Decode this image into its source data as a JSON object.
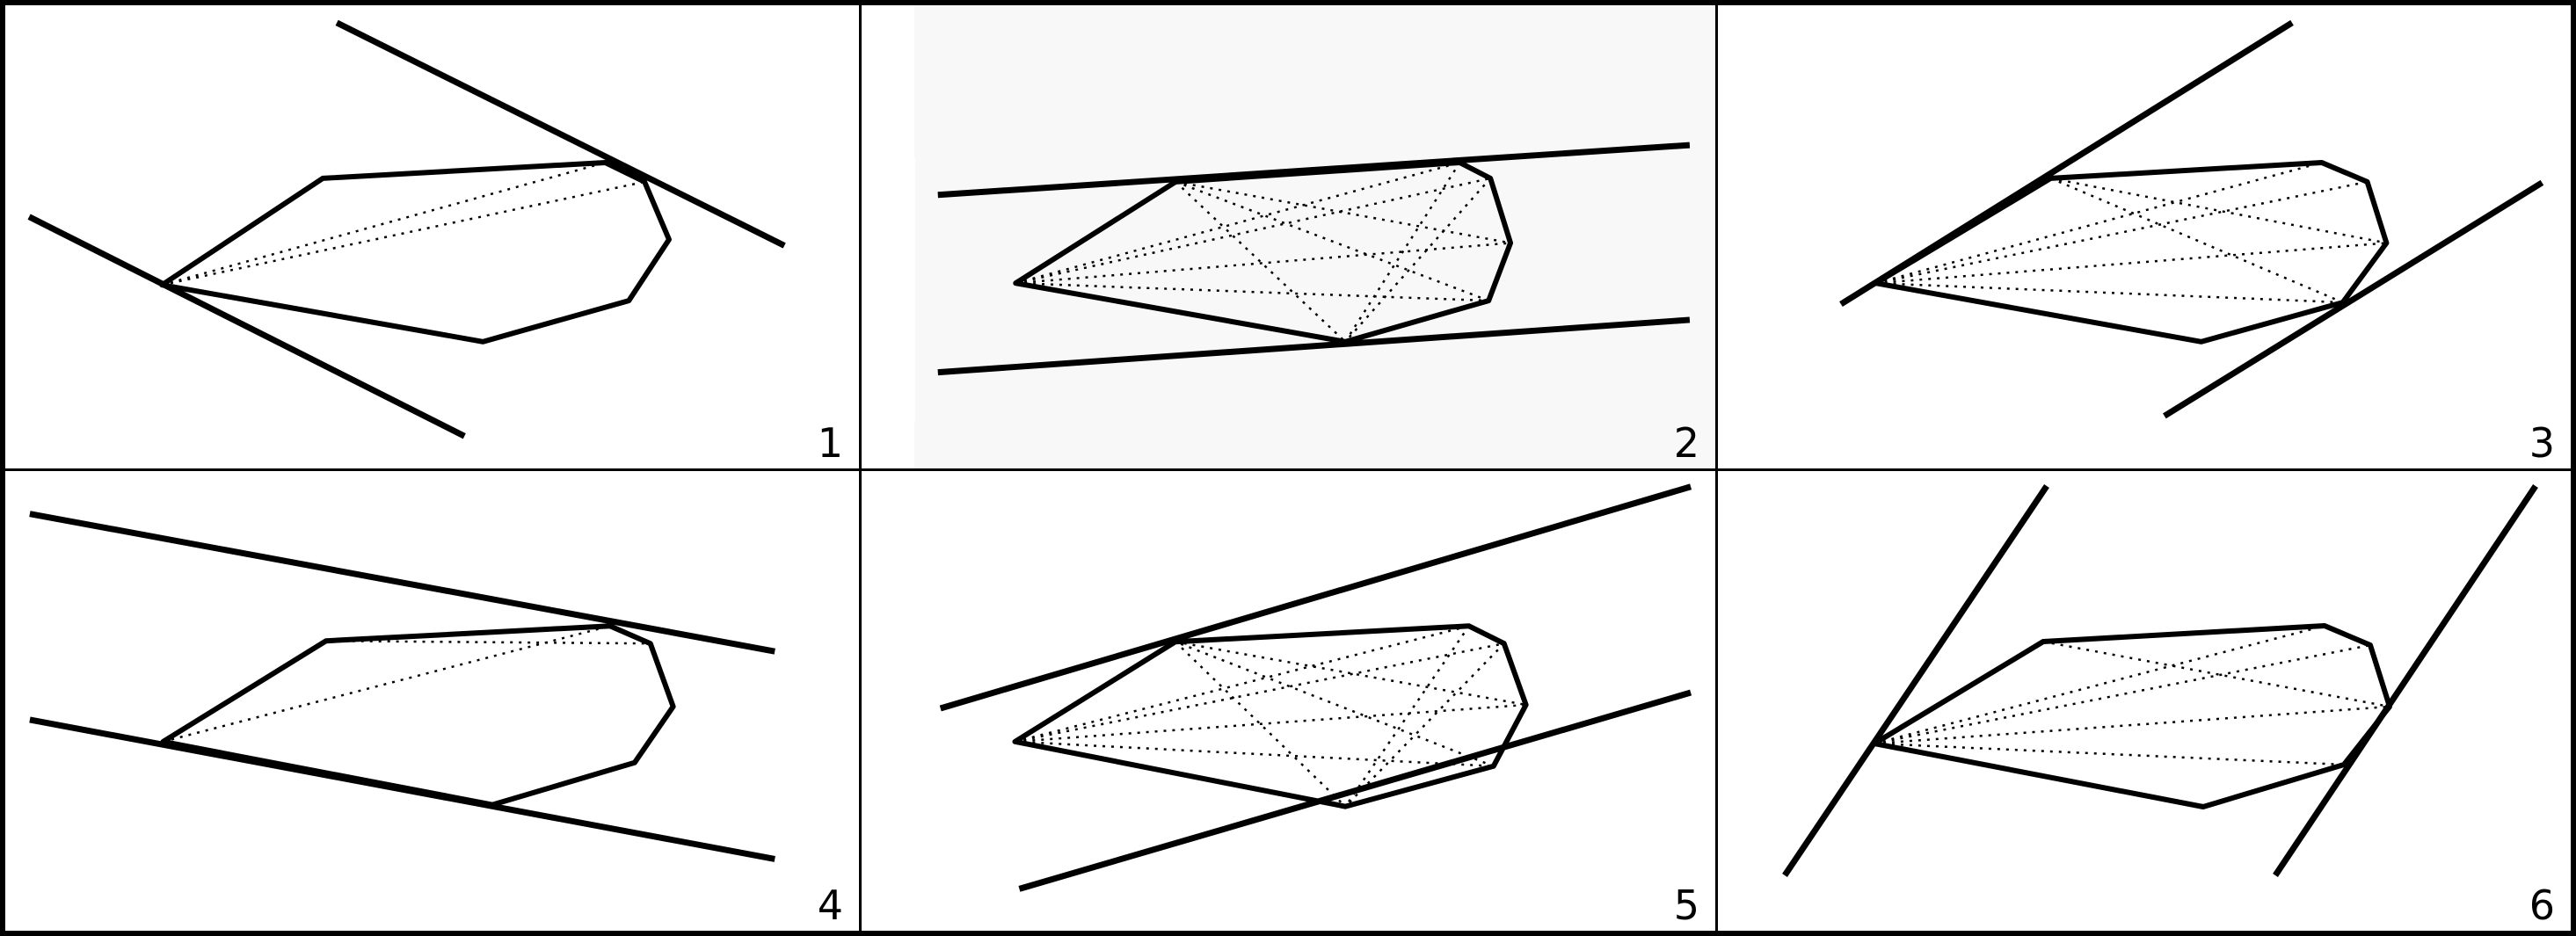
{
  "panels": [
    {
      "id": 1,
      "label": "1"
    },
    {
      "id": 2,
      "label": "2"
    },
    {
      "id": 3,
      "label": "3"
    },
    {
      "id": 4,
      "label": "4"
    },
    {
      "id": 5,
      "label": "5"
    },
    {
      "id": 6,
      "label": "6"
    }
  ],
  "colors": {
    "stroke": "#000000",
    "panel_tint": "#f8f8f8"
  }
}
